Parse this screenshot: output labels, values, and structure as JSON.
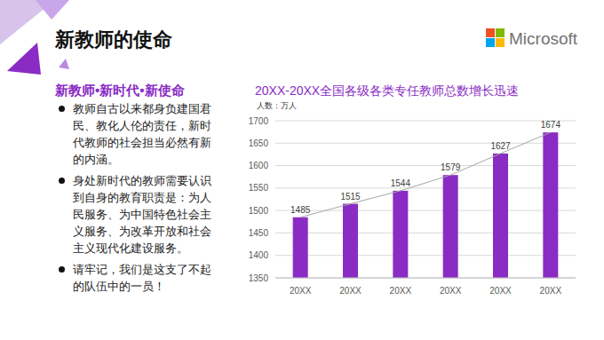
{
  "header": {
    "title": "新教师的使命",
    "logo": "Microsoft"
  },
  "content": {
    "subtitle": "新教师•新时代•新使命",
    "bullets": [
      "教师自古以来都身负建国君民、教化人伦的责任，新时代教师的社会担当必然有新的内涵。",
      "身处新时代的教师需要认识到自身的教育职责是：为人民服务、为中国特色社会主义服务、为改革开放和社会主义现代化建设服务。",
      "请牢记，我们是这支了不起的队伍中的一员！"
    ]
  },
  "chart_data": {
    "type": "bar",
    "title": "20XX-20XX全国各级各类专任教师总数增长迅速",
    "y_label": "人数：万人",
    "categories": [
      "20XX",
      "20XX",
      "20XX",
      "20XX",
      "20XX",
      "20XX"
    ],
    "values": [
      1485,
      1515,
      1544,
      1579,
      1627,
      1674
    ],
    "color": "#8a2cc4",
    "ylim": [
      1350,
      1700
    ],
    "yticks": [
      1350,
      1400,
      1450,
      1500,
      1550,
      1600,
      1650,
      1700
    ],
    "grid": true,
    "data_labels": true
  }
}
